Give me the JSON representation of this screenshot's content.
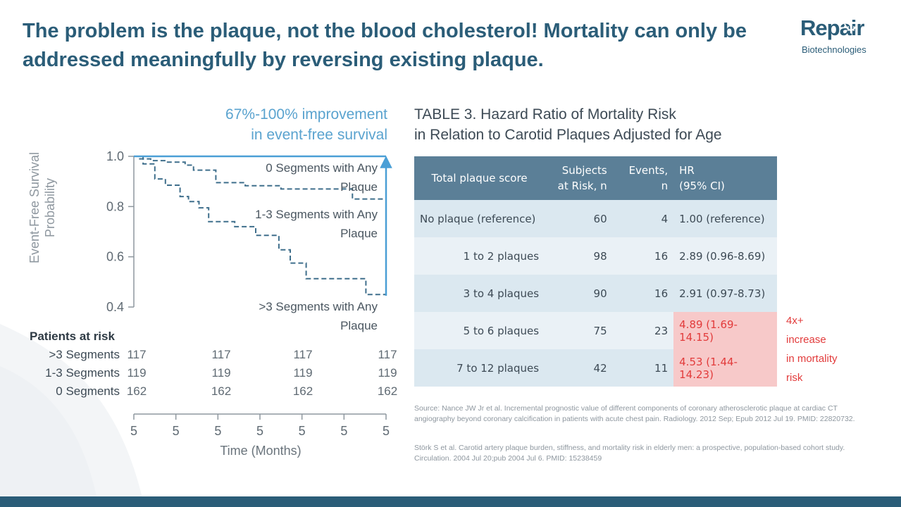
{
  "headline": "The problem is the plaque, not the blood cholesterol! Mortality can only be addressed meaningfully by reversing existing plaque.",
  "logo": {
    "word": "Repair",
    "sub": "Biotechnologies"
  },
  "improvement": {
    "line1": "67%-100% improvement",
    "line2": "in event-free survival"
  },
  "chart_data": {
    "type": "line",
    "title": "",
    "xlabel": "Time (Months)",
    "ylabel": "Event-Free Survival Probability",
    "ylim": [
      0.4,
      1.0
    ],
    "xlim": [
      0,
      6
    ],
    "y_ticks": [
      "1.0",
      "0.8",
      "0.6",
      "0.4"
    ],
    "x_ticks": [
      "5",
      "5",
      "5",
      "5",
      "5",
      "5",
      "5"
    ],
    "series": [
      {
        "name": "0 Segments with Any Plaque",
        "label_line1": "0 Segments with Any",
        "label_line2": "Plaque",
        "points": [
          [
            0,
            1.0
          ],
          [
            0.1,
            1.0
          ],
          [
            0.1,
            0.99
          ],
          [
            0.4,
            0.99
          ],
          [
            0.4,
            0.983
          ],
          [
            0.78,
            0.983
          ],
          [
            0.78,
            0.977
          ],
          [
            1.22,
            0.977
          ],
          [
            1.22,
            0.965
          ],
          [
            1.42,
            0.965
          ],
          [
            1.42,
            0.945
          ],
          [
            1.95,
            0.945
          ],
          [
            1.95,
            0.895
          ],
          [
            2.65,
            0.895
          ],
          [
            2.65,
            0.883
          ],
          [
            3.5,
            0.883
          ],
          [
            3.5,
            0.87
          ],
          [
            5.2,
            0.87
          ],
          [
            5.2,
            0.83
          ],
          [
            6.0,
            0.83
          ]
        ]
      },
      {
        "name": "1-3 Segments with Any Plaque",
        "label_line1": "1-3 Segments with Any",
        "label_line2": "Plaque",
        "points": [
          [
            0,
            1.0
          ],
          [
            0.22,
            1.0
          ],
          [
            0.22,
            0.97
          ],
          [
            0.5,
            0.97
          ],
          [
            0.5,
            0.91
          ],
          [
            0.75,
            0.91
          ],
          [
            0.75,
            0.885
          ],
          [
            1.1,
            0.885
          ],
          [
            1.1,
            0.84
          ],
          [
            1.3,
            0.84
          ],
          [
            1.3,
            0.82
          ],
          [
            1.55,
            0.82
          ],
          [
            1.55,
            0.795
          ],
          [
            1.78,
            0.795
          ],
          [
            1.78,
            0.74
          ],
          [
            2.4,
            0.74
          ],
          [
            2.4,
            0.72
          ],
          [
            2.9,
            0.72
          ],
          [
            2.9,
            0.685
          ],
          [
            3.45,
            0.685
          ],
          [
            3.45,
            0.628
          ],
          [
            3.72,
            0.628
          ],
          [
            3.72,
            0.575
          ],
          [
            4.1,
            0.575
          ],
          [
            4.1,
            0.513
          ],
          [
            5.52,
            0.513
          ],
          [
            5.52,
            0.45
          ],
          [
            6.0,
            0.45
          ]
        ]
      },
      {
        "name": ">3 Segments with Any Plaque",
        "label_line1": ">3 Segments with Any",
        "label_line2": "Plaque",
        "points": [
          [
            0,
            1.0
          ],
          [
            6.0,
            1.0
          ]
        ]
      }
    ],
    "colors": {
      "solid": "#4a9fd6",
      "dashed": "#3f6f8c",
      "axis": "#8e979f"
    }
  },
  "risk_table": {
    "title": "Patients at risk",
    "rows": [
      {
        "label": ">3 Segments",
        "values": [
          "117",
          "117",
          "117",
          "117"
        ]
      },
      {
        "label": "1-3 Segments",
        "values": [
          "119",
          "119",
          "119",
          "119"
        ]
      },
      {
        "label": "0 Segments",
        "values": [
          "162",
          "162",
          "162",
          "162"
        ]
      }
    ]
  },
  "hazard_table": {
    "title_line1": "TABLE 3. Hazard Ratio of Mortality Risk",
    "title_line2": "in Relation to Carotid Plaques Adjusted for Age",
    "headers": {
      "col1": "Total plaque score",
      "col2_line1": "Subjects",
      "col2_line2": "at Risk, n",
      "col3_line1": "Events,",
      "col3_line2": "n",
      "col4_line1": "HR",
      "col4_line2": "(95% CI)"
    },
    "rows": [
      {
        "score": "No plaque (reference)",
        "subjects": "60",
        "events": "4",
        "hr": "1.00 (reference)"
      },
      {
        "score": "1 to 2 plaques",
        "subjects": "98",
        "events": "16",
        "hr": "2.89 (0.96-8.69)"
      },
      {
        "score": "3 to 4 plaques",
        "subjects": "90",
        "events": "16",
        "hr": "2.91 (0.97-8.73)"
      },
      {
        "score": "5 to 6 plaques",
        "subjects": "75",
        "events": "23",
        "hr": "4.89 (1.69-14.15)"
      },
      {
        "score": "7 to 12 plaques",
        "subjects": "42",
        "events": "11",
        "hr": "4.53 (1.44-14.23)"
      }
    ],
    "highlight_color": "#f7c9c9",
    "highlight_text_color": "#e23b3b"
  },
  "increase_note": {
    "line1": "4x+",
    "line2": "increase",
    "line3": "in mortality",
    "line4": "risk"
  },
  "sources": {
    "s1": "Source: Nance JW Jr et al. Incremental prognostic value of different components of coronary atherosclerotic plaque at cardiac CT angiography beyond coronary calcification in patients with acute chest pain. Radiology. 2012 Sep; Epub 2012 Jul 19. PMID: 22820732.",
    "s2": "Störk S et al. Carotid artery plaque burden, stiffness, and mortality risk in elderly men: a prospective, population-based cohort study. Circulation. 2004 Jul 20;pub 2004 Jul 6. PMID: 15238459"
  },
  "colors": {
    "brand": "#2b5d78",
    "accent": "#5aa3cf",
    "table_header": "#5b7f97"
  }
}
